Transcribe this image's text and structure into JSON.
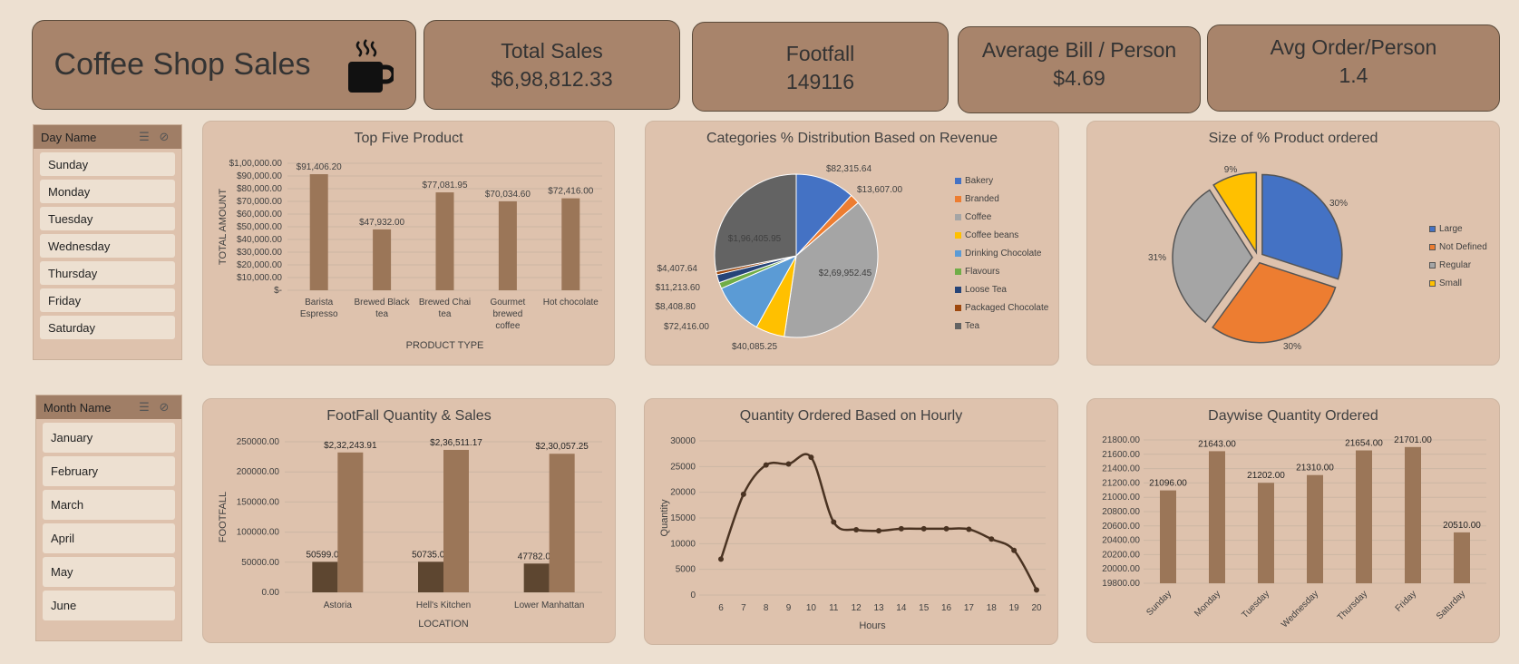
{
  "header": {
    "title": "Coffee Shop Sales",
    "cards": [
      {
        "label": "Total Sales",
        "value": "$6,98,812.33"
      },
      {
        "label": "Footfall",
        "value": "149116"
      },
      {
        "label": "Average Bill / Person",
        "value": "$4.69"
      },
      {
        "label": "Avg Order/Person",
        "value": "1.4"
      }
    ]
  },
  "slicers": {
    "day": {
      "title": "Day Name",
      "items": [
        "Sunday",
        "Monday",
        "Tuesday",
        "Wednesday",
        "Thursday",
        "Friday",
        "Saturday"
      ]
    },
    "month": {
      "title": "Month Name",
      "items": [
        "January",
        "February",
        "March",
        "April",
        "May",
        "June"
      ]
    }
  },
  "colors": {
    "bar": "#9b7658",
    "dark_bar": "#5d4630",
    "line": "#4a3322",
    "panel": "#dec2ad",
    "kpi": "#a8846b"
  },
  "chart_data": [
    {
      "id": "top_products",
      "type": "bar",
      "title": "Top Five Product",
      "xlabel": "PRODUCT TYPE",
      "ylabel": "TOTAL AMOUNT",
      "categories": [
        [
          "Barista",
          "Espresso"
        ],
        [
          "Brewed Black",
          "tea"
        ],
        [
          "Brewed Chai",
          "tea"
        ],
        [
          "Gourmet",
          "brewed",
          "coffee"
        ],
        [
          "Hot chocolate"
        ]
      ],
      "values": [
        91406.2,
        47932.0,
        77081.95,
        70034.6,
        72416.0
      ],
      "data_labels": [
        "$91,406.20",
        "$47,932.00",
        "$77,081.95",
        "$70,034.60",
        "$72,416.00"
      ],
      "ylim": [
        0,
        100000
      ],
      "ticks": [
        0,
        10000,
        20000,
        30000,
        40000,
        50000,
        60000,
        70000,
        80000,
        90000,
        100000
      ],
      "tick_labels": [
        "$-",
        "$10,000.00",
        "$20,000.00",
        "$30,000.00",
        "$40,000.00",
        "$50,000.00",
        "$60,000.00",
        "$70,000.00",
        "$80,000.00",
        "$90,000.00",
        "$1,00,000.00"
      ]
    },
    {
      "id": "categories",
      "type": "pie",
      "title": "Categories % Distribution  Based on Revenue",
      "labels": [
        "Bakery",
        "Branded",
        "Coffee",
        "Coffee beans",
        "Drinking Chocolate",
        "Flavours",
        "Loose Tea",
        "Packaged Chocolate",
        "Tea"
      ],
      "values": [
        82315.64,
        13607.0,
        269952.45,
        40085.25,
        72416.0,
        8408.8,
        11213.6,
        4407.64,
        196405.95
      ],
      "data_labels": [
        "$82,315.64",
        "$13,607.00",
        "$2,69,952.45",
        "$40,085.25",
        "$72,416.00",
        "$8,408.80",
        "$11,213.60",
        "$4,407.64",
        "$1,96,405.95"
      ],
      "colors": [
        "#4472c4",
        "#ed7d31",
        "#a5a5a5",
        "#ffc000",
        "#5b9bd5",
        "#70ad47",
        "#264478",
        "#9e480e",
        "#636363"
      ],
      "legend": "right"
    },
    {
      "id": "size",
      "type": "pie",
      "title": "Size  of % Product ordered",
      "labels": [
        "Large",
        "Not Defined",
        "Regular",
        "Small"
      ],
      "values": [
        30,
        30,
        31,
        9
      ],
      "data_labels": [
        "30%",
        "30%",
        "31%",
        "9%"
      ],
      "colors": [
        "#4472c4",
        "#ed7d31",
        "#a5a5a5",
        "#ffc000"
      ],
      "legend": "right"
    },
    {
      "id": "footfall",
      "type": "bar",
      "title": "FootFall Quantity & Sales",
      "xlabel": "LOCATION",
      "ylabel": "FOOTFALL",
      "categories": [
        "Astoria",
        "Hell's Kitchen",
        "Lower Manhattan"
      ],
      "series": [
        {
          "values": [
            50599,
            50735,
            47782
          ],
          "data_labels": [
            "50599.00",
            "50735.00",
            "47782.00"
          ]
        },
        {
          "values": [
            232243.91,
            236511.17,
            230057.25
          ],
          "data_labels": [
            "$2,32,243.91",
            "$2,36,511.17",
            "$2,30,057.25"
          ]
        }
      ],
      "ylim": [
        0,
        250000
      ],
      "ticks": [
        0,
        50000,
        100000,
        150000,
        200000,
        250000
      ],
      "tick_labels": [
        "0.00",
        "50000.00",
        "100000.00",
        "150000.00",
        "200000.00",
        "250000.00"
      ]
    },
    {
      "id": "hourly",
      "type": "line",
      "title": "Quantity Ordered Based on Hourly",
      "xlabel": "Hours",
      "ylabel": "Quantity",
      "x": [
        6,
        7,
        8,
        9,
        10,
        11,
        12,
        13,
        14,
        15,
        16,
        17,
        18,
        19,
        20
      ],
      "y": [
        7000,
        19600,
        25300,
        25500,
        26800,
        14200,
        12700,
        12500,
        12900,
        12900,
        12900,
        12800,
        10900,
        8700,
        1000
      ],
      "ylim": [
        0,
        30000
      ],
      "ticks": [
        0,
        5000,
        10000,
        15000,
        20000,
        25000,
        30000
      ]
    },
    {
      "id": "daywise",
      "type": "bar",
      "title": "Daywise Quantity Ordered",
      "categories": [
        "Sunday",
        "Monday",
        "Tuesday",
        "Wednesday",
        "Thursday",
        "Friday",
        "Saturday"
      ],
      "values": [
        21096,
        21643,
        21202,
        21310,
        21654,
        21701,
        20510
      ],
      "data_labels": [
        "21096.00",
        "21643.00",
        "21202.00",
        "21310.00",
        "21654.00",
        "21701.00",
        "20510.00"
      ],
      "ylim": [
        19800,
        21800
      ],
      "ticks": [
        19800,
        20000,
        20200,
        20400,
        20600,
        20800,
        21000,
        21200,
        21400,
        21600,
        21800
      ],
      "tick_labels": [
        "19800.00",
        "20000.00",
        "20200.00",
        "20400.00",
        "20600.00",
        "20800.00",
        "21000.00",
        "21200.00",
        "21400.00",
        "21600.00",
        "21800.00"
      ]
    }
  ]
}
